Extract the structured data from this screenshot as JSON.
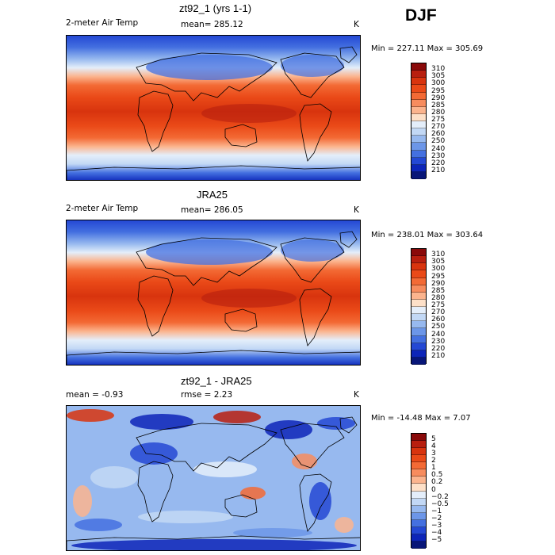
{
  "season": "DJF",
  "panels": [
    {
      "title": "zt92_1 (yrs 1-1)",
      "left_label": "2-meter Air Temp",
      "center_label": "mean= 285.12",
      "right_label": "K",
      "minmax": "Min = 227.11 Max = 305.69",
      "colorbar": {
        "labels": [
          "310",
          "305",
          "300",
          "295",
          "290",
          "285",
          "280",
          "275",
          "270",
          "260",
          "250",
          "240",
          "230",
          "220",
          "210"
        ],
        "colors": [
          "#8a0a0a",
          "#b81f0f",
          "#d8340e",
          "#ea4a18",
          "#f36a35",
          "#f78c5e",
          "#fbb48e",
          "#fde0c8",
          "#e4eefa",
          "#c2d8f5",
          "#97b9ef",
          "#6c96e8",
          "#4470e0",
          "#2448d4",
          "#0d25b8",
          "#081678"
        ]
      },
      "map_kind": "temp"
    },
    {
      "title": "JRA25",
      "left_label": "2-meter Air Temp",
      "center_label": "mean= 286.05",
      "right_label": "K",
      "minmax": "Min = 238.01 Max = 303.64",
      "colorbar": {
        "labels": [
          "310",
          "305",
          "300",
          "295",
          "290",
          "285",
          "280",
          "275",
          "270",
          "260",
          "250",
          "240",
          "230",
          "220",
          "210"
        ],
        "colors": [
          "#8a0a0a",
          "#b81f0f",
          "#d8340e",
          "#ea4a18",
          "#f36a35",
          "#f78c5e",
          "#fbb48e",
          "#fde0c8",
          "#e4eefa",
          "#c2d8f5",
          "#97b9ef",
          "#6c96e8",
          "#4470e0",
          "#2448d4",
          "#0d25b8",
          "#081678"
        ]
      },
      "map_kind": "temp"
    },
    {
      "title": "zt92_1 - JRA25",
      "left_label": "mean =   -0.93",
      "center_label": "rmse =    2.23",
      "right_label": "K",
      "minmax": "Min = -14.48 Max =    7.07",
      "colorbar": {
        "labels": [
          "5",
          "4",
          "3",
          "2",
          "1",
          "0.5",
          "0.2",
          "0",
          "−0.2",
          "−0.5",
          "−1",
          "−2",
          "−3",
          "−4",
          "−5"
        ],
        "colors": [
          "#8a0a0a",
          "#b81f0f",
          "#d8340e",
          "#ea4a18",
          "#f36a35",
          "#f78c5e",
          "#fbb48e",
          "#fde0c8",
          "#e4eefa",
          "#c2d8f5",
          "#97b9ef",
          "#6c96e8",
          "#4470e0",
          "#2448d4",
          "#0d25b8",
          "#081678"
        ]
      },
      "map_kind": "diff"
    }
  ]
}
